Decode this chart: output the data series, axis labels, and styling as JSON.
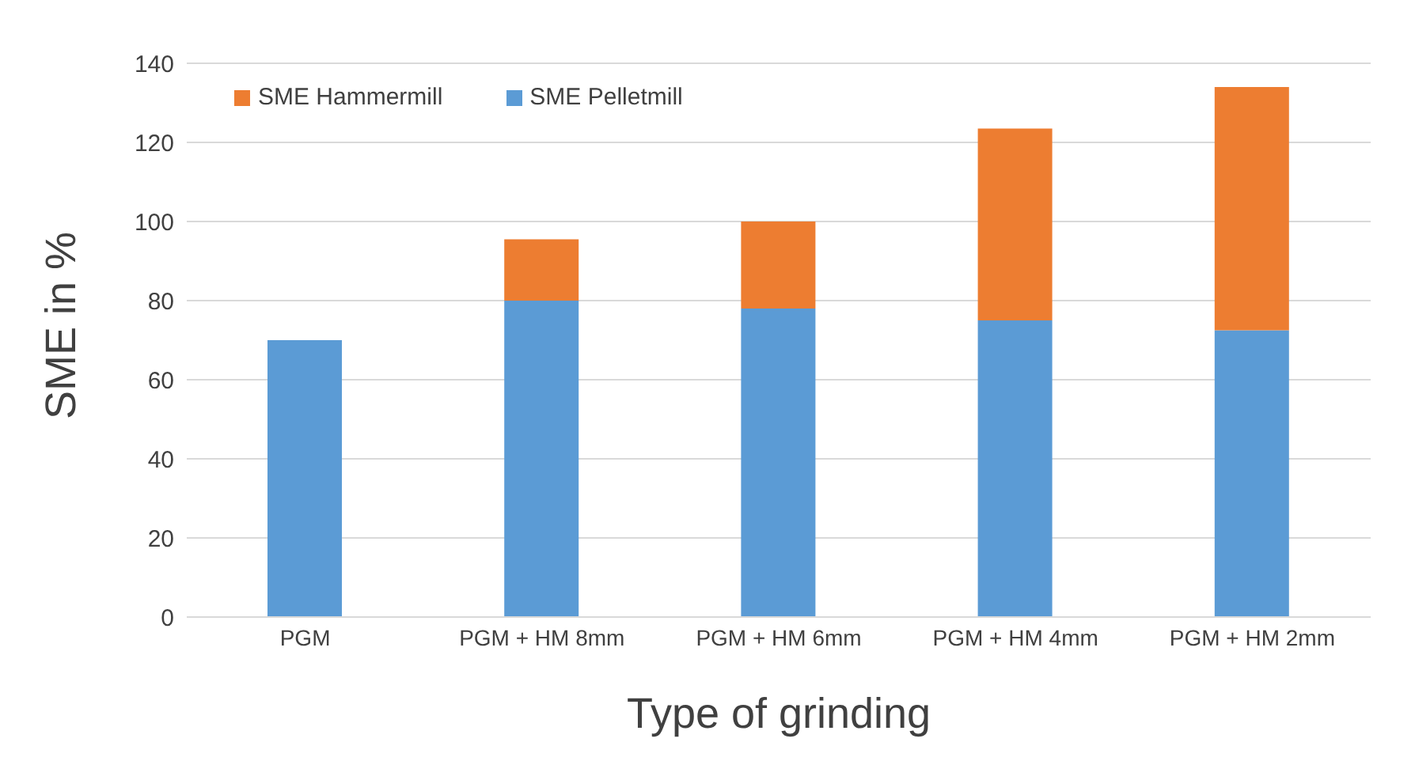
{
  "chart_data": {
    "type": "bar",
    "stacked": true,
    "xlabel": "Type of grinding",
    "ylabel": "SME in %",
    "categories": [
      "PGM",
      "PGM + HM 8mm",
      "PGM + HM 6mm",
      "PGM + HM 4mm",
      "PGM + HM 2mm"
    ],
    "series": [
      {
        "name": "SME Pelletmill",
        "color": "#5b9bd5",
        "values": [
          70,
          80,
          78,
          75,
          72.5
        ]
      },
      {
        "name": "SME Hammermill",
        "color": "#ed7d31",
        "values": [
          null,
          15.5,
          22,
          48.5,
          61.5
        ]
      }
    ],
    "ylim": [
      0,
      140
    ],
    "yticks": [
      0,
      20,
      40,
      60,
      80,
      100,
      120,
      140
    ],
    "grid": "y",
    "legend": "top left"
  }
}
